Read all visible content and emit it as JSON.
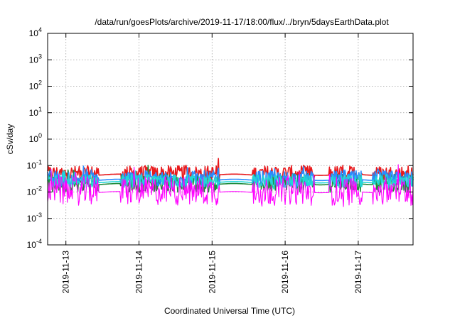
{
  "chart_data": {
    "type": "line",
    "title": "/data/run/goesPlots/archive/2019-11-17/18:00/flux/../bryn/5daysEarthData.plot",
    "xlabel": "Coordinated Universal Time (UTC)",
    "ylabel": "cSv/day",
    "yscale": "log",
    "ylim": [
      0.0001,
      10000
    ],
    "y_ticks": [
      {
        "base": "10",
        "exp": "-4",
        "value": 0.0001
      },
      {
        "base": "10",
        "exp": "-3",
        "value": 0.001
      },
      {
        "base": "10",
        "exp": "-2",
        "value": 0.01
      },
      {
        "base": "10",
        "exp": "-1",
        "value": 0.1
      },
      {
        "base": "10",
        "exp": "0",
        "value": 1
      },
      {
        "base": "10",
        "exp": "1",
        "value": 10
      },
      {
        "base": "10",
        "exp": "2",
        "value": 100
      },
      {
        "base": "10",
        "exp": "3",
        "value": 1000
      },
      {
        "base": "10",
        "exp": "4",
        "value": 10000
      }
    ],
    "xlim": [
      "2019-11-12T18:00",
      "2019-11-17T18:00"
    ],
    "x_ticks": [
      "2019-11-13",
      "2019-11-14",
      "2019-11-15",
      "2019-11-16",
      "2019-11-17"
    ],
    "grid": true,
    "legend": "none",
    "series": [
      {
        "color": "#e8191c",
        "level": 0.05,
        "spread": 0.3
      },
      {
        "color": "#1f8a3a",
        "level": 0.022,
        "spread": 0.35
      },
      {
        "color": "#2a8cff",
        "level": 0.032,
        "spread": 0.3
      },
      {
        "color": "#22d6d6",
        "level": 0.026,
        "spread": 0.25
      },
      {
        "color": "#ff00ff",
        "level": 0.011,
        "spread": 0.55
      }
    ]
  }
}
